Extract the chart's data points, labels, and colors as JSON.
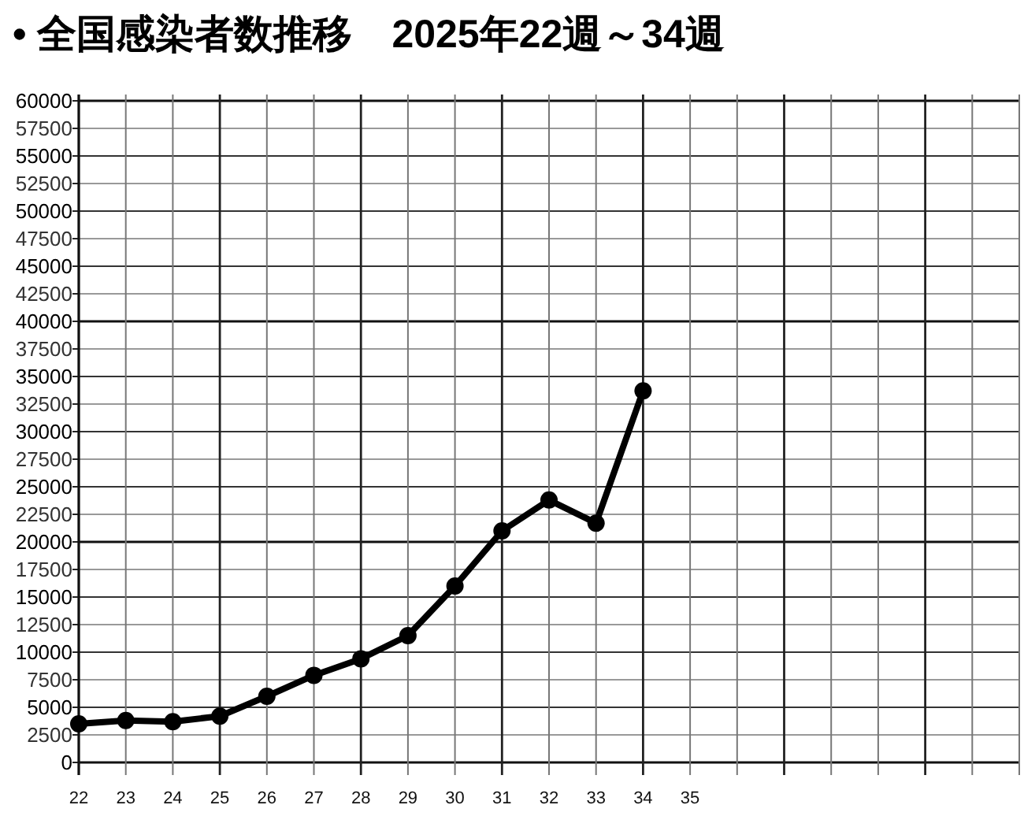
{
  "chart_data": {
    "type": "line",
    "title": "• 全国感染者数推移　2025年22週～34週",
    "categories": [
      "22",
      "23",
      "24",
      "25",
      "26",
      "27",
      "28",
      "29",
      "30",
      "31",
      "32",
      "33",
      "34",
      "35",
      null,
      null,
      null,
      null,
      null,
      null,
      null
    ],
    "series": [
      {
        "color": "#000000",
        "values": [
          3500,
          3800,
          3700,
          4200,
          6000,
          7900,
          9400,
          11500,
          16000,
          21000,
          23800,
          21700,
          33700,
          null,
          null,
          null,
          null,
          null,
          null,
          null,
          null
        ]
      }
    ],
    "ylim": [
      0,
      60000
    ],
    "yticks": [
      0,
      2500,
      5000,
      7500,
      10000,
      12500,
      15000,
      17500,
      20000,
      22500,
      25000,
      27500,
      30000,
      32500,
      35000,
      37500,
      40000,
      42500,
      45000,
      47500,
      50000,
      52500,
      55000,
      57500,
      60000
    ],
    "grid": true,
    "marker": "circle",
    "line_style": "solid"
  }
}
